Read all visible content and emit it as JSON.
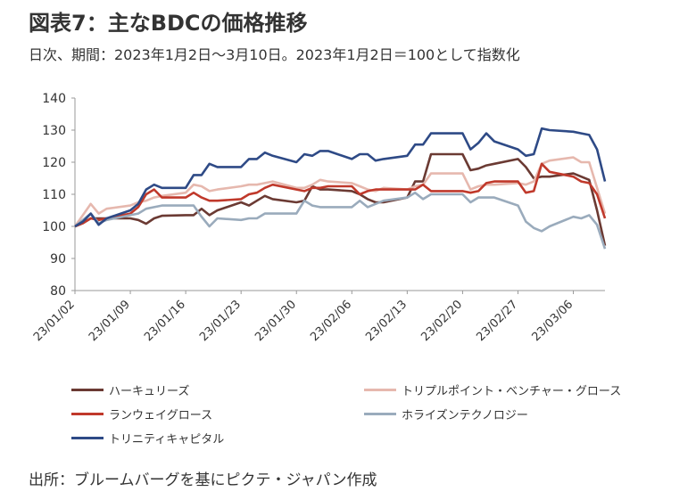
{
  "title": "図表7：主なBDCの価格推移",
  "subtitle": "日次、期間：2023年1月2日～3月10日。2023年1月2日＝100として指数化",
  "source": "出所：ブルームバーグを基にピクテ・ジャパン作成",
  "chart_data": {
    "type": "line",
    "ylim": [
      80,
      140
    ],
    "yticks": [
      80,
      90,
      100,
      110,
      120,
      130,
      140
    ],
    "xticks": [
      "23/01/02",
      "23/01/09",
      "23/01/16",
      "23/01/23",
      "23/01/30",
      "23/02/06",
      "23/02/13",
      "23/02/20",
      "23/02/27",
      "23/03/06"
    ],
    "xlim": [
      "2023-01-02",
      "2023-03-10"
    ],
    "grid": false,
    "legend_position": "bottom",
    "series": [
      {
        "name": "ハーキュリーズ",
        "color": "#6b3a33",
        "points": [
          [
            "2023-01-02",
            100
          ],
          [
            "2023-01-03",
            101
          ],
          [
            "2023-01-04",
            102.5
          ],
          [
            "2023-01-05",
            102.5
          ],
          [
            "2023-01-06",
            102.5
          ],
          [
            "2023-01-09",
            102.5
          ],
          [
            "2023-01-10",
            102
          ],
          [
            "2023-01-11",
            100.8
          ],
          [
            "2023-01-12",
            102.5
          ],
          [
            "2023-01-13",
            103.3
          ],
          [
            "2023-01-16",
            103.5
          ],
          [
            "2023-01-17",
            103.5
          ],
          [
            "2023-01-18",
            105.5
          ],
          [
            "2023-01-19",
            103.5
          ],
          [
            "2023-01-20",
            105
          ],
          [
            "2023-01-23",
            107.5
          ],
          [
            "2023-01-24",
            106.5
          ],
          [
            "2023-01-25",
            108
          ],
          [
            "2023-01-26",
            109.5
          ],
          [
            "2023-01-27",
            108.5
          ],
          [
            "2023-01-30",
            107.5
          ],
          [
            "2023-01-31",
            108
          ],
          [
            "2023-02-01",
            112.5
          ],
          [
            "2023-02-02",
            111.5
          ],
          [
            "2023-02-03",
            111.5
          ],
          [
            "2023-02-06",
            111
          ],
          [
            "2023-02-07",
            110
          ],
          [
            "2023-02-08",
            108.5
          ],
          [
            "2023-02-09",
            107.5
          ],
          [
            "2023-02-10",
            107.5
          ],
          [
            "2023-02-13",
            109
          ],
          [
            "2023-02-14",
            114
          ],
          [
            "2023-02-15",
            114
          ],
          [
            "2023-02-16",
            122.5
          ],
          [
            "2023-02-17",
            122.5
          ],
          [
            "2023-02-20",
            122.5
          ],
          [
            "2023-02-21",
            117.5
          ],
          [
            "2023-02-22",
            118
          ],
          [
            "2023-02-23",
            119
          ],
          [
            "2023-02-24",
            119.5
          ],
          [
            "2023-02-27",
            121
          ],
          [
            "2023-02-28",
            118.5
          ],
          [
            "2023-03-01",
            115
          ],
          [
            "2023-03-02",
            115.5
          ],
          [
            "2023-03-03",
            115.5
          ],
          [
            "2023-03-06",
            116.5
          ],
          [
            "2023-03-07",
            115.5
          ],
          [
            "2023-03-08",
            114.5
          ],
          [
            "2023-03-09",
            105
          ],
          [
            "2023-03-10",
            94
          ]
        ]
      },
      {
        "name": "トリプルポイント・ベンチャー・グロース",
        "color": "#e6b8ae",
        "points": [
          [
            "2023-01-02",
            100
          ],
          [
            "2023-01-03",
            103.5
          ],
          [
            "2023-01-04",
            107
          ],
          [
            "2023-01-05",
            104
          ],
          [
            "2023-01-06",
            105.5
          ],
          [
            "2023-01-09",
            106.5
          ],
          [
            "2023-01-10",
            107.5
          ],
          [
            "2023-01-11",
            108
          ],
          [
            "2023-01-12",
            109
          ],
          [
            "2023-01-13",
            109.5
          ],
          [
            "2023-01-16",
            110.5
          ],
          [
            "2023-01-17",
            113
          ],
          [
            "2023-01-18",
            112.5
          ],
          [
            "2023-01-19",
            111
          ],
          [
            "2023-01-20",
            111.5
          ],
          [
            "2023-01-23",
            112.5
          ],
          [
            "2023-01-24",
            113
          ],
          [
            "2023-01-25",
            113
          ],
          [
            "2023-01-26",
            113.5
          ],
          [
            "2023-01-27",
            114
          ],
          [
            "2023-01-30",
            112
          ],
          [
            "2023-01-31",
            112
          ],
          [
            "2023-02-01",
            113
          ],
          [
            "2023-02-02",
            114.5
          ],
          [
            "2023-02-03",
            114
          ],
          [
            "2023-02-06",
            113.5
          ],
          [
            "2023-02-07",
            112.5
          ],
          [
            "2023-02-08",
            111.5
          ],
          [
            "2023-02-09",
            111
          ],
          [
            "2023-02-10",
            112
          ],
          [
            "2023-02-13",
            111.5
          ],
          [
            "2023-02-14",
            112.5
          ],
          [
            "2023-02-15",
            113
          ],
          [
            "2023-02-16",
            116.5
          ],
          [
            "2023-02-17",
            116.5
          ],
          [
            "2023-02-20",
            116.5
          ],
          [
            "2023-02-21",
            111.5
          ],
          [
            "2023-02-22",
            112.5
          ],
          [
            "2023-02-23",
            113
          ],
          [
            "2023-02-24",
            113
          ],
          [
            "2023-02-27",
            113.5
          ],
          [
            "2023-02-28",
            113
          ],
          [
            "2023-03-01",
            114
          ],
          [
            "2023-03-02",
            119.5
          ],
          [
            "2023-03-03",
            120.5
          ],
          [
            "2023-03-06",
            121.5
          ],
          [
            "2023-03-07",
            120
          ],
          [
            "2023-03-08",
            120
          ],
          [
            "2023-03-09",
            112
          ],
          [
            "2023-03-10",
            104
          ]
        ]
      },
      {
        "name": "ランウェイグロース",
        "color": "#c0392b",
        "points": [
          [
            "2023-01-02",
            100
          ],
          [
            "2023-01-03",
            101
          ],
          [
            "2023-01-04",
            102.5
          ],
          [
            "2023-01-05",
            102
          ],
          [
            "2023-01-06",
            102.5
          ],
          [
            "2023-01-09",
            104
          ],
          [
            "2023-01-10",
            106
          ],
          [
            "2023-01-11",
            110
          ],
          [
            "2023-01-12",
            111.5
          ],
          [
            "2023-01-13",
            109
          ],
          [
            "2023-01-16",
            109
          ],
          [
            "2023-01-17",
            110.5
          ],
          [
            "2023-01-18",
            109
          ],
          [
            "2023-01-19",
            108
          ],
          [
            "2023-01-20",
            108
          ],
          [
            "2023-01-23",
            108.5
          ],
          [
            "2023-01-24",
            110
          ],
          [
            "2023-01-25",
            110.5
          ],
          [
            "2023-01-26",
            112
          ],
          [
            "2023-01-27",
            113
          ],
          [
            "2023-01-30",
            111.5
          ],
          [
            "2023-01-31",
            111
          ],
          [
            "2023-02-01",
            112
          ],
          [
            "2023-02-02",
            112
          ],
          [
            "2023-02-03",
            112.5
          ],
          [
            "2023-02-06",
            112.5
          ],
          [
            "2023-02-07",
            110
          ],
          [
            "2023-02-08",
            111
          ],
          [
            "2023-02-09",
            111.5
          ],
          [
            "2023-02-10",
            111.5
          ],
          [
            "2023-02-13",
            111.5
          ],
          [
            "2023-02-14",
            111.5
          ],
          [
            "2023-02-15",
            113
          ],
          [
            "2023-02-16",
            111
          ],
          [
            "2023-02-17",
            111
          ],
          [
            "2023-02-20",
            111
          ],
          [
            "2023-02-21",
            110.5
          ],
          [
            "2023-02-22",
            111
          ],
          [
            "2023-02-23",
            113.5
          ],
          [
            "2023-02-24",
            114
          ],
          [
            "2023-02-27",
            114
          ],
          [
            "2023-02-28",
            110.5
          ],
          [
            "2023-03-01",
            111
          ],
          [
            "2023-03-02",
            119.5
          ],
          [
            "2023-03-03",
            117
          ],
          [
            "2023-03-06",
            115.5
          ],
          [
            "2023-03-07",
            114
          ],
          [
            "2023-03-08",
            113.5
          ],
          [
            "2023-03-09",
            110
          ],
          [
            "2023-03-10",
            102.5
          ]
        ]
      },
      {
        "name": "ホライズンテクノロジー",
        "color": "#9aabbc",
        "points": [
          [
            "2023-01-02",
            100
          ],
          [
            "2023-01-03",
            102
          ],
          [
            "2023-01-04",
            104
          ],
          [
            "2023-01-05",
            101
          ],
          [
            "2023-01-06",
            102
          ],
          [
            "2023-01-09",
            103.5
          ],
          [
            "2023-01-10",
            104
          ],
          [
            "2023-01-11",
            105.5
          ],
          [
            "2023-01-12",
            106
          ],
          [
            "2023-01-13",
            106.5
          ],
          [
            "2023-01-16",
            106.5
          ],
          [
            "2023-01-17",
            106.5
          ],
          [
            "2023-01-18",
            103
          ],
          [
            "2023-01-19",
            100
          ],
          [
            "2023-01-20",
            102.5
          ],
          [
            "2023-01-23",
            102
          ],
          [
            "2023-01-24",
            102.5
          ],
          [
            "2023-01-25",
            102.5
          ],
          [
            "2023-01-26",
            104
          ],
          [
            "2023-01-27",
            104
          ],
          [
            "2023-01-30",
            104
          ],
          [
            "2023-01-31",
            108
          ],
          [
            "2023-02-01",
            106.5
          ],
          [
            "2023-02-02",
            106
          ],
          [
            "2023-02-03",
            106
          ],
          [
            "2023-02-06",
            106
          ],
          [
            "2023-02-07",
            108
          ],
          [
            "2023-02-08",
            106
          ],
          [
            "2023-02-09",
            107
          ],
          [
            "2023-02-10",
            108
          ],
          [
            "2023-02-13",
            109
          ],
          [
            "2023-02-14",
            110.5
          ],
          [
            "2023-02-15",
            108.5
          ],
          [
            "2023-02-16",
            110
          ],
          [
            "2023-02-17",
            110
          ],
          [
            "2023-02-20",
            110
          ],
          [
            "2023-02-21",
            107.5
          ],
          [
            "2023-02-22",
            109
          ],
          [
            "2023-02-23",
            109
          ],
          [
            "2023-02-24",
            109
          ],
          [
            "2023-02-27",
            106.5
          ],
          [
            "2023-02-28",
            101.5
          ],
          [
            "2023-03-01",
            99.5
          ],
          [
            "2023-03-02",
            98.5
          ],
          [
            "2023-03-03",
            100
          ],
          [
            "2023-03-06",
            103
          ],
          [
            "2023-03-07",
            102.5
          ],
          [
            "2023-03-08",
            103.5
          ],
          [
            "2023-03-09",
            100.5
          ],
          [
            "2023-03-10",
            93
          ]
        ]
      },
      {
        "name": "トリニティキャピタル",
        "color": "#2e4a86",
        "points": [
          [
            "2023-01-02",
            100
          ],
          [
            "2023-01-03",
            101.5
          ],
          [
            "2023-01-04",
            104
          ],
          [
            "2023-01-05",
            100.5
          ],
          [
            "2023-01-06",
            102.5
          ],
          [
            "2023-01-09",
            105
          ],
          [
            "2023-01-10",
            107
          ],
          [
            "2023-01-11",
            111.5
          ],
          [
            "2023-01-12",
            113
          ],
          [
            "2023-01-13",
            112
          ],
          [
            "2023-01-16",
            112
          ],
          [
            "2023-01-17",
            116
          ],
          [
            "2023-01-18",
            116
          ],
          [
            "2023-01-19",
            119.5
          ],
          [
            "2023-01-20",
            118.5
          ],
          [
            "2023-01-23",
            118.5
          ],
          [
            "2023-01-24",
            121
          ],
          [
            "2023-01-25",
            121
          ],
          [
            "2023-01-26",
            123
          ],
          [
            "2023-01-27",
            122
          ],
          [
            "2023-01-30",
            120
          ],
          [
            "2023-01-31",
            122.5
          ],
          [
            "2023-02-01",
            122
          ],
          [
            "2023-02-02",
            123.5
          ],
          [
            "2023-02-03",
            123.5
          ],
          [
            "2023-02-06",
            121
          ],
          [
            "2023-02-07",
            122.5
          ],
          [
            "2023-02-08",
            122.5
          ],
          [
            "2023-02-09",
            120.5
          ],
          [
            "2023-02-10",
            121
          ],
          [
            "2023-02-13",
            122
          ],
          [
            "2023-02-14",
            125.5
          ],
          [
            "2023-02-15",
            125.5
          ],
          [
            "2023-02-16",
            129
          ],
          [
            "2023-02-17",
            129
          ],
          [
            "2023-02-20",
            129
          ],
          [
            "2023-02-21",
            124
          ],
          [
            "2023-02-22",
            126
          ],
          [
            "2023-02-23",
            129
          ],
          [
            "2023-02-24",
            126.5
          ],
          [
            "2023-02-27",
            124
          ],
          [
            "2023-02-28",
            122
          ],
          [
            "2023-03-01",
            122.5
          ],
          [
            "2023-03-02",
            130.5
          ],
          [
            "2023-03-03",
            130
          ],
          [
            "2023-03-06",
            129.5
          ],
          [
            "2023-03-07",
            129
          ],
          [
            "2023-03-08",
            128.5
          ],
          [
            "2023-03-09",
            124
          ],
          [
            "2023-03-10",
            114
          ]
        ]
      }
    ]
  }
}
